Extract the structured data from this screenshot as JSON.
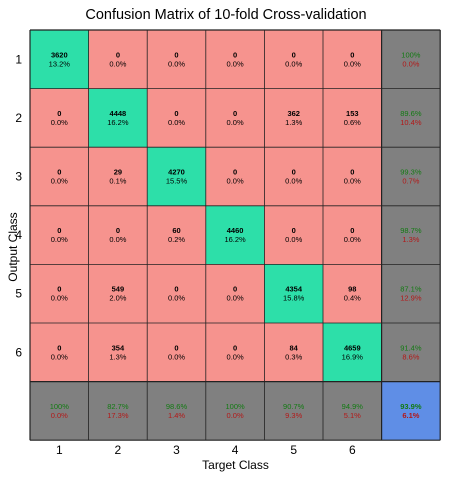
{
  "chart_data": {
    "type": "heatmap",
    "title": "Confusion Matrix of 10-fold Cross-validation",
    "xlabel": "Target Class",
    "ylabel": "Output Class",
    "x_ticks": [
      "1",
      "2",
      "3",
      "4",
      "5",
      "6"
    ],
    "y_ticks": [
      "1",
      "2",
      "3",
      "4",
      "5",
      "6"
    ],
    "rows": [
      {
        "cells": [
          {
            "count": "3620",
            "pct": "13.2%"
          },
          {
            "count": "0",
            "pct": "0.0%"
          },
          {
            "count": "0",
            "pct": "0.0%"
          },
          {
            "count": "0",
            "pct": "0.0%"
          },
          {
            "count": "0",
            "pct": "0.0%"
          },
          {
            "count": "0",
            "pct": "0.0%"
          }
        ],
        "summary": {
          "correct": "100%",
          "error": "0.0%"
        }
      },
      {
        "cells": [
          {
            "count": "0",
            "pct": "0.0%"
          },
          {
            "count": "4448",
            "pct": "16.2%"
          },
          {
            "count": "0",
            "pct": "0.0%"
          },
          {
            "count": "0",
            "pct": "0.0%"
          },
          {
            "count": "362",
            "pct": "1.3%"
          },
          {
            "count": "153",
            "pct": "0.6%"
          }
        ],
        "summary": {
          "correct": "89.6%",
          "error": "10.4%"
        }
      },
      {
        "cells": [
          {
            "count": "0",
            "pct": "0.0%"
          },
          {
            "count": "29",
            "pct": "0.1%"
          },
          {
            "count": "4270",
            "pct": "15.5%"
          },
          {
            "count": "0",
            "pct": "0.0%"
          },
          {
            "count": "0",
            "pct": "0.0%"
          },
          {
            "count": "0",
            "pct": "0.0%"
          }
        ],
        "summary": {
          "correct": "99.3%",
          "error": "0.7%"
        }
      },
      {
        "cells": [
          {
            "count": "0",
            "pct": "0.0%"
          },
          {
            "count": "0",
            "pct": "0.0%"
          },
          {
            "count": "60",
            "pct": "0.2%"
          },
          {
            "count": "4460",
            "pct": "16.2%"
          },
          {
            "count": "0",
            "pct": "0.0%"
          },
          {
            "count": "0",
            "pct": "0.0%"
          }
        ],
        "summary": {
          "correct": "98.7%",
          "error": "1.3%"
        }
      },
      {
        "cells": [
          {
            "count": "0",
            "pct": "0.0%"
          },
          {
            "count": "549",
            "pct": "2.0%"
          },
          {
            "count": "0",
            "pct": "0.0%"
          },
          {
            "count": "0",
            "pct": "0.0%"
          },
          {
            "count": "4354",
            "pct": "15.8%"
          },
          {
            "count": "98",
            "pct": "0.4%"
          }
        ],
        "summary": {
          "correct": "87.1%",
          "error": "12.9%"
        }
      },
      {
        "cells": [
          {
            "count": "0",
            "pct": "0.0%"
          },
          {
            "count": "354",
            "pct": "1.3%"
          },
          {
            "count": "0",
            "pct": "0.0%"
          },
          {
            "count": "0",
            "pct": "0.0%"
          },
          {
            "count": "84",
            "pct": "0.3%"
          },
          {
            "count": "4659",
            "pct": "16.9%"
          }
        ],
        "summary": {
          "correct": "91.4%",
          "error": "8.6%"
        }
      }
    ],
    "column_summary": [
      {
        "correct": "100%",
        "error": "0.0%"
      },
      {
        "correct": "82.7%",
        "error": "17.3%"
      },
      {
        "correct": "98.6%",
        "error": "1.4%"
      },
      {
        "correct": "100%",
        "error": "0.0%"
      },
      {
        "correct": "90.7%",
        "error": "9.3%"
      },
      {
        "correct": "94.9%",
        "error": "5.1%"
      }
    ],
    "overall": {
      "correct": "93.9%",
      "error": "6.1%"
    },
    "colors": {
      "diagonal": "#2ddfa9",
      "off_diagonal": "#f6938e",
      "summary": "#808080",
      "overall": "#5f8ee6",
      "correct_text": "#127a12",
      "error_text": "#b31818",
      "grid": "#222222"
    }
  }
}
